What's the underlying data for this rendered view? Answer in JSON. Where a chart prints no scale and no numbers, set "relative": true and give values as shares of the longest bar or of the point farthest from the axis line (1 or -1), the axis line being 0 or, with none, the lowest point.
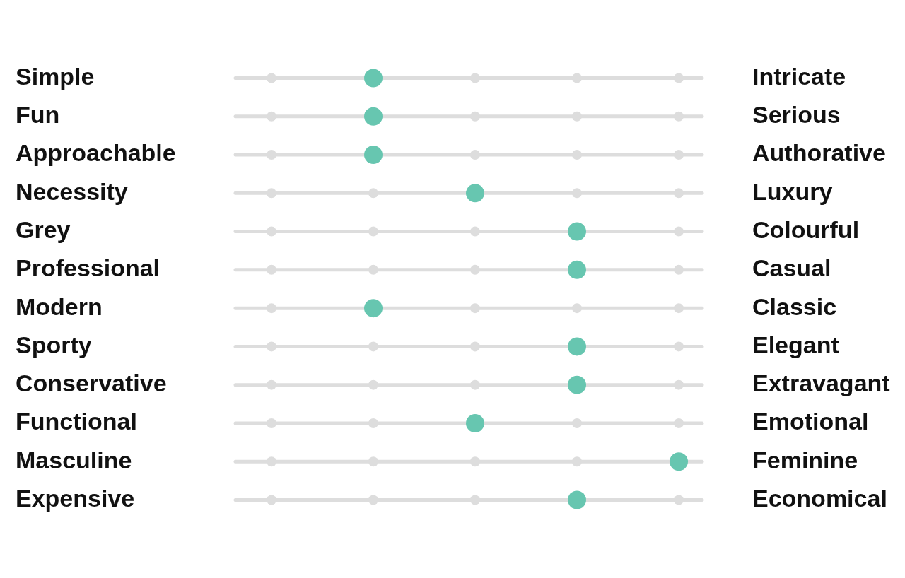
{
  "chart_data": {
    "type": "scatter",
    "orientation": "horizontal",
    "relative": true,
    "grid": "y",
    "marker": "circle",
    "legend": false,
    "categories": [
      "Simple",
      "Fun",
      "Approachable",
      "Necessity",
      "Grey",
      "Professional",
      "Modern",
      "Sporty",
      "Conservative",
      "Functional",
      "Masculine",
      "Expensive"
    ],
    "y2_categories": [
      "Intricate",
      "Serious",
      "Authorative",
      "Luxury",
      "Colourful",
      "Casual",
      "Classic",
      "Elegant",
      "Extravagant",
      "Emotional",
      "Feminine",
      "Economical"
    ],
    "series": [
      {
        "color": "#dddddd",
        "values": [
          0,
          0,
          0,
          0,
          0,
          0,
          0,
          0,
          0,
          0,
          0,
          0
        ]
      },
      {
        "color": "#dddddd",
        "values": [
          null,
          null,
          null,
          0.25,
          0.25,
          0.25,
          null,
          0.25,
          0.25,
          0.25,
          0.25,
          0.25
        ]
      },
      {
        "color": "#dddddd",
        "values": [
          0.5,
          0.5,
          0.5,
          null,
          0.5,
          0.5,
          0.5,
          0.5,
          0.5,
          null,
          0.5,
          0.5
        ]
      },
      {
        "color": "#dddddd",
        "values": [
          0.75,
          0.75,
          0.75,
          0.75,
          null,
          null,
          0.75,
          null,
          null,
          0.75,
          0.75,
          null
        ]
      },
      {
        "color": "#dddddd",
        "values": [
          1,
          1,
          1,
          1,
          1,
          1,
          1,
          1,
          1,
          1,
          null,
          1
        ]
      },
      {
        "color": "#67c6b0",
        "values": [
          0.25,
          0.25,
          0.25,
          0.5,
          0.75,
          0.75,
          0.25,
          0.75,
          0.75,
          0.5,
          1,
          0.75
        ]
      }
    ]
  }
}
